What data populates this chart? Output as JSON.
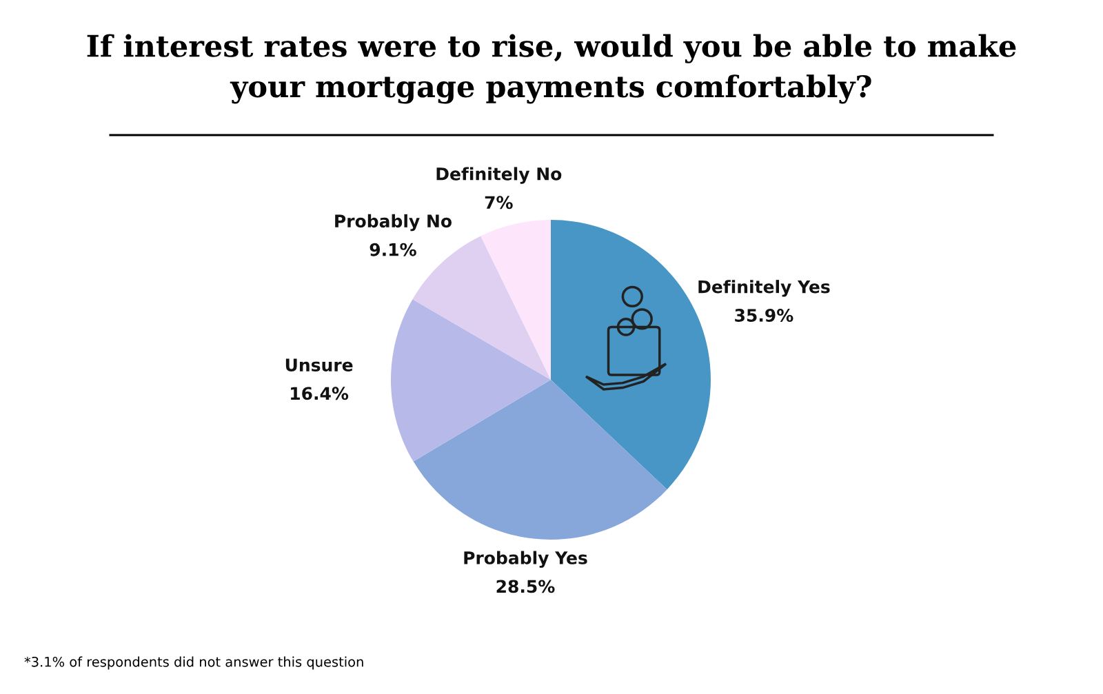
{
  "chart_data": {
    "type": "pie",
    "title": "If interest rates were to rise, would you be able to make\nyour mortgage payments comfortably?",
    "categories": [
      "Definitely Yes",
      "Probably Yes",
      "Unsure",
      "Probably No",
      "Definitely No"
    ],
    "values": [
      35.9,
      28.5,
      16.4,
      9.1,
      7
    ],
    "value_labels": [
      "35.9%",
      "28.5%",
      "16.4%",
      "9.1%",
      "7%"
    ],
    "colors": [
      "#4796c6",
      "#87a7da",
      "#b7b9e8",
      "#dfd0f2",
      "#fde6fb"
    ],
    "legend": false,
    "annotations": [
      "*3.1% of respondents did not answer this question"
    ]
  }
}
